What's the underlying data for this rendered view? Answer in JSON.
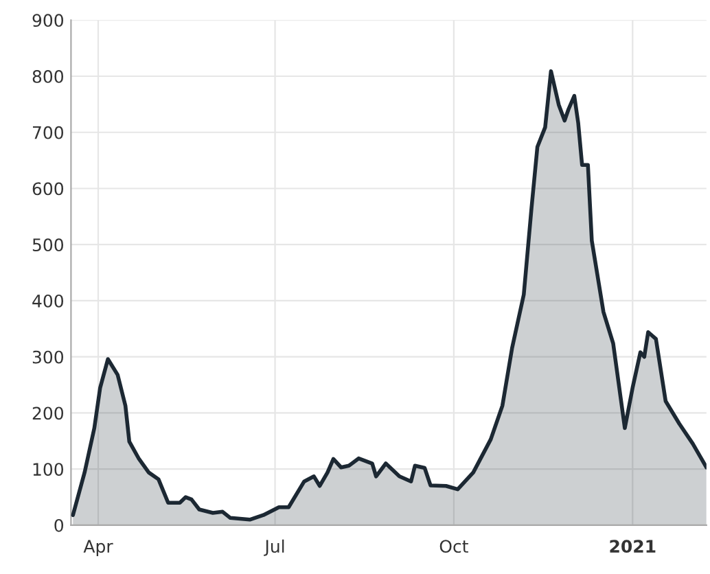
{
  "chart_data": {
    "type": "area",
    "x": [
      "2020-03-19",
      "2020-03-25",
      "2020-03-30",
      "2020-04-02",
      "2020-04-06",
      "2020-04-11",
      "2020-04-15",
      "2020-04-17",
      "2020-04-22",
      "2020-04-27",
      "2020-05-02",
      "2020-05-07",
      "2020-05-13",
      "2020-05-16",
      "2020-05-19",
      "2020-05-23",
      "2020-05-30",
      "2020-06-04",
      "2020-06-08",
      "2020-06-18",
      "2020-06-25",
      "2020-07-03",
      "2020-07-08",
      "2020-07-16",
      "2020-07-21",
      "2020-07-24",
      "2020-07-28",
      "2020-07-31",
      "2020-08-04",
      "2020-08-08",
      "2020-08-13",
      "2020-08-20",
      "2020-08-22",
      "2020-08-27",
      "2020-09-03",
      "2020-09-09",
      "2020-09-11",
      "2020-09-16",
      "2020-09-19",
      "2020-09-27",
      "2020-10-03",
      "2020-10-11",
      "2020-10-20",
      "2020-10-26",
      "2020-10-31",
      "2020-11-06",
      "2020-11-10",
      "2020-11-13",
      "2020-11-17",
      "2020-11-20",
      "2020-11-24",
      "2020-11-27",
      "2020-11-29",
      "2020-12-02",
      "2020-12-04",
      "2020-12-06",
      "2020-12-09",
      "2020-12-11",
      "2020-12-17",
      "2020-12-22",
      "2020-12-28",
      "2021-01-01",
      "2021-01-05",
      "2021-01-07",
      "2021-01-09",
      "2021-01-13",
      "2021-01-18",
      "2021-01-25",
      "2021-02-01",
      "2021-02-08"
    ],
    "series": [
      {
        "color": "#1c2833",
        "values": [
          18,
          94,
          173,
          245,
          296,
          268,
          213,
          149,
          118,
          94,
          82,
          40,
          40,
          50,
          46,
          28,
          22,
          24,
          13,
          10,
          18,
          32,
          32,
          78,
          87,
          70,
          94,
          118,
          103,
          106,
          119,
          110,
          87,
          110,
          87,
          78,
          106,
          102,
          71,
          70,
          64,
          94,
          153,
          213,
          316,
          411,
          566,
          674,
          709,
          809,
          749,
          721,
          741,
          765,
          717,
          642,
          642,
          507,
          380,
          324,
          173,
          245,
          308,
          300,
          344,
          332,
          221,
          181,
          145,
          103
        ]
      }
    ],
    "xlim": [
      "2020-03-18",
      "2021-02-08"
    ],
    "xticks": [
      {
        "value": "2020-04-01",
        "label": "Apr"
      },
      {
        "value": "2020-07-01",
        "label": "Jul"
      },
      {
        "value": "2020-10-01",
        "label": "Oct"
      },
      {
        "value": "2021-01-01",
        "label": "2021"
      }
    ],
    "ylim": [
      0,
      900
    ],
    "yticks": [
      0,
      100,
      200,
      300,
      400,
      500,
      600,
      700,
      800,
      900
    ],
    "grid": true
  }
}
